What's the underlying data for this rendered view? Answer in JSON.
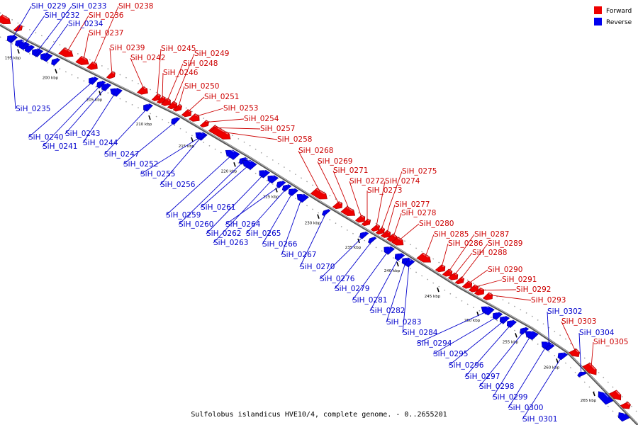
{
  "caption": "Sulfolobus islandicus HVE10/4, complete genome. - 0..2655201",
  "legend": [
    {
      "label": "Forward",
      "color": "#ee0000"
    },
    {
      "label": "Reverse",
      "color": "#0000ee"
    }
  ],
  "colors": {
    "forward": "#ee0000",
    "reverse": "#0000ee",
    "forward_text": "#cc0000",
    "reverse_text": "#0000cc",
    "backbone": "#8c8c8c"
  },
  "axis_ticks": [
    "195 kbp",
    "200 kbp",
    "205 kbp",
    "210 kbp",
    "215 kbp",
    "220 kbp",
    "225 kbp",
    "230 kbp",
    "235 kbp",
    "240 kbp",
    "245 kbp",
    "250 kbp",
    "255 kbp",
    "260 kbp",
    "265 kbp"
  ],
  "forward_genes": [
    "SiH_0236",
    "SiH_0237",
    "SiH_0238",
    "SiH_0239",
    "SiH_0242",
    "SiH_0245",
    "SiH_0246",
    "SiH_0248",
    "SiH_0249",
    "SiH_0250",
    "SiH_0251",
    "SiH_0253",
    "SiH_0254",
    "SiH_0257",
    "SiH_0258",
    "SiH_0268",
    "SiH_0269",
    "SiH_0271",
    "SiH_0272",
    "SiH_0273",
    "SiH_0274",
    "SiH_0275",
    "SiH_0277",
    "SiH_0278",
    "SiH_0280",
    "SiH_0285",
    "SiH_0286",
    "SiH_0287",
    "SiH_0288",
    "SiH_0289",
    "SiH_0290",
    "SiH_0291",
    "SiH_0292",
    "SiH_0293",
    "SiH_0303",
    "SiH_0305"
  ],
  "reverse_genes": [
    "SiH_0229",
    "SiH_0232",
    "SiH_0233",
    "SiH_0234",
    "SiH_0235",
    "SiH_0240",
    "SiH_0241",
    "SiH_0243",
    "SiH_0244",
    "SiH_0247",
    "SiH_0252",
    "SiH_0255",
    "SiH_0256",
    "SiH_0259",
    "SiH_0260",
    "SiH_0261",
    "SiH_0262",
    "SiH_0263",
    "SiH_0264",
    "SiH_0265",
    "SiH_0266",
    "SiH_0267",
    "SiH_0270",
    "SiH_0276",
    "SiH_0279",
    "SiH_0281",
    "SiH_0282",
    "SiH_0283",
    "SiH_0284",
    "SiH_0294",
    "SiH_0295",
    "SiH_0296",
    "SiH_0297",
    "SiH_0298",
    "SiH_0299",
    "SiH_0300",
    "SiH_0301",
    "SiH_0302",
    "SiH_0304"
  ]
}
